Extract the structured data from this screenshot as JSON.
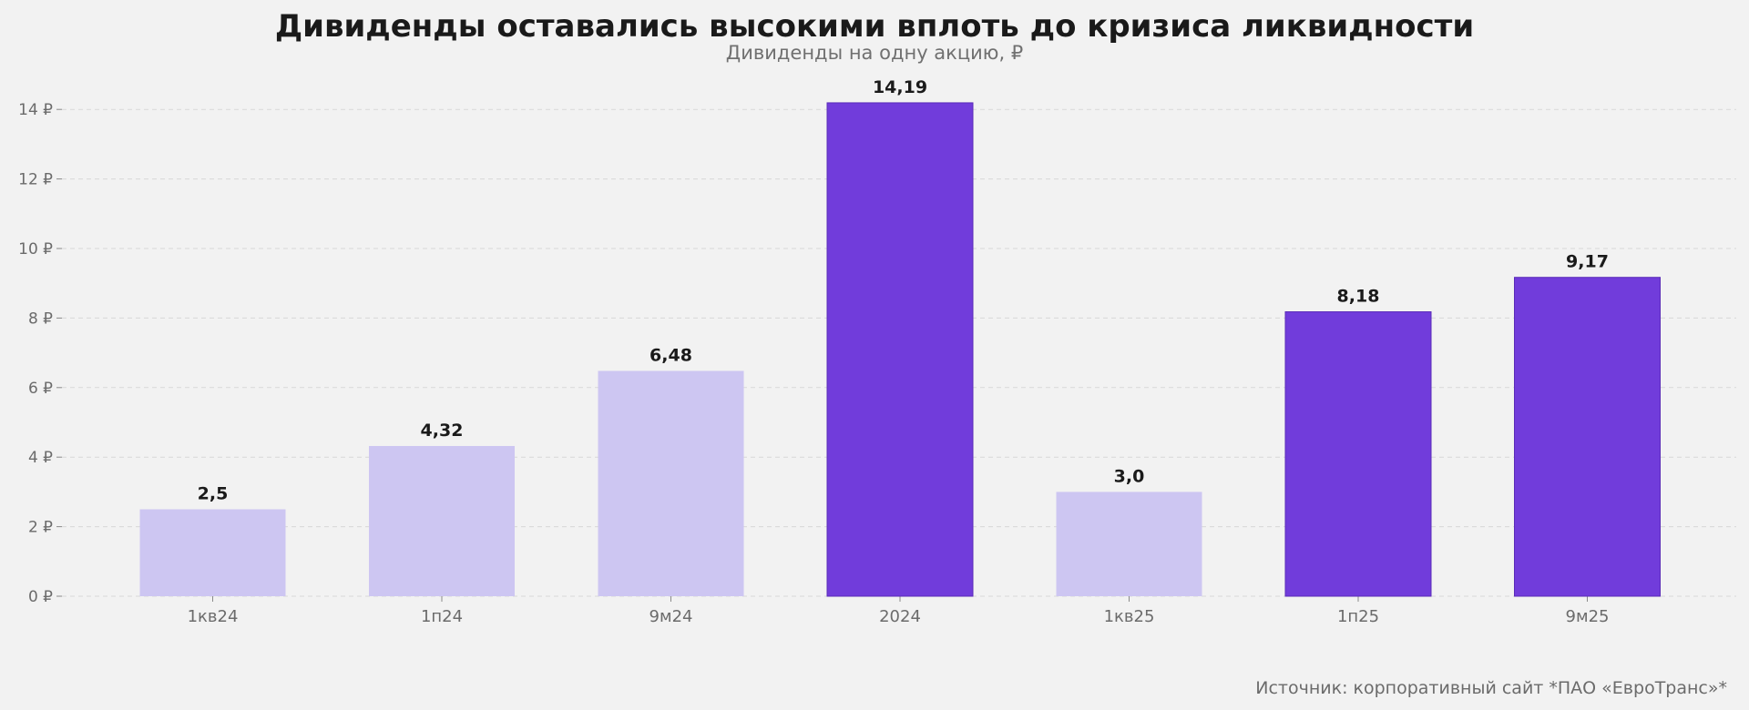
{
  "chart_data": {
    "type": "bar",
    "title": "Дивиденды оставались высокими вплоть до кризиса ликвидности",
    "subtitle": "Дивиденды на одну акцию, ₽",
    "categories": [
      "1кв24",
      "1п24",
      "9м24",
      "2024",
      "1кв25",
      "1п25",
      "9м25"
    ],
    "values": [
      2.5,
      4.32,
      6.48,
      14.19,
      3.0,
      8.18,
      9.17
    ],
    "value_labels": [
      "2,5",
      "4,32",
      "6,48",
      "14,19",
      "3,0",
      "8,18",
      "9,17"
    ],
    "highlighted": [
      false,
      false,
      false,
      true,
      false,
      true,
      true
    ],
    "ylim": [
      0,
      14.6
    ],
    "yticks": [
      0,
      2,
      4,
      6,
      8,
      10,
      12,
      14
    ],
    "ytick_labels": [
      "0 ₽",
      "2 ₽",
      "4 ₽",
      "6 ₽",
      "8 ₽",
      "10 ₽",
      "12 ₽",
      "14 ₽"
    ],
    "xlabel": "",
    "ylabel": "",
    "grid": true,
    "colors": {
      "highlight": "#713cdb",
      "highlight_edge": "#5a2bb8",
      "muted": "#cdc6f2",
      "background": "#f2f2f2"
    }
  },
  "footer": {
    "source": "Источник: корпоративный сайт *ПАО «ЕвроТранс»*"
  }
}
